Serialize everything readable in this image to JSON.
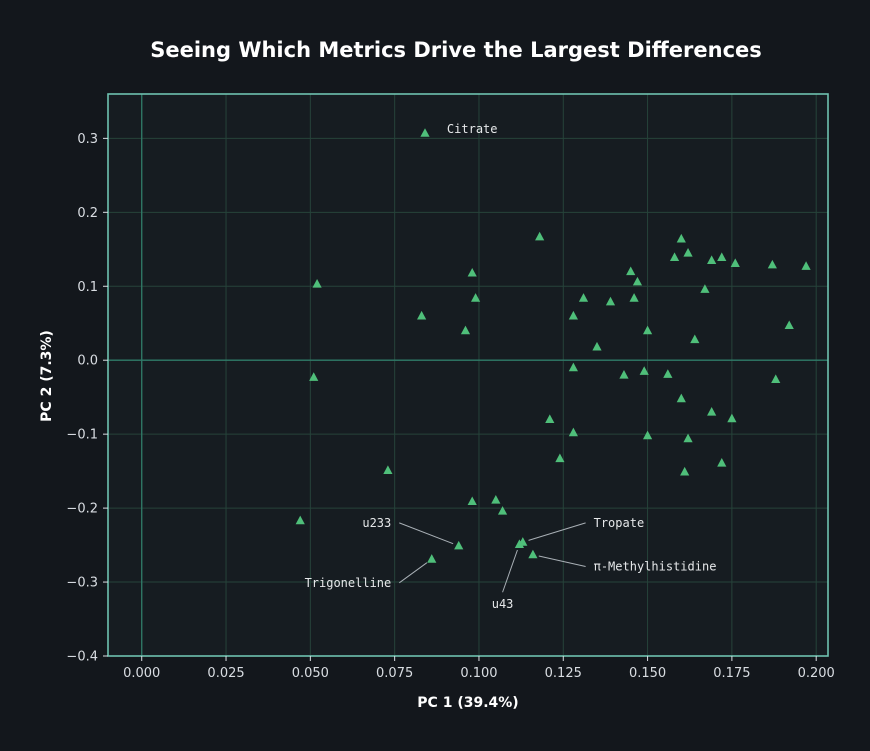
{
  "chart_data": {
    "type": "scatter",
    "title": "Seeing Which Metrics Drive the Largest Differences",
    "xlabel": "PC 1  (39.4%)",
    "ylabel": "PC 2  (7.3%)",
    "xlim": [
      -0.01,
      0.2035
    ],
    "ylim": [
      -0.4,
      0.36
    ],
    "xticks": [
      0.0,
      0.025,
      0.05,
      0.075,
      0.1,
      0.125,
      0.15,
      0.175,
      0.2
    ],
    "xtick_labels": [
      "0.000",
      "0.025",
      "0.050",
      "0.075",
      "0.100",
      "0.125",
      "0.150",
      "0.175",
      "0.200"
    ],
    "yticks": [
      0.3,
      0.2,
      0.1,
      0.0,
      -0.1,
      -0.2,
      -0.3,
      -0.4
    ],
    "ytick_labels": [
      "0.3",
      "0.2",
      "0.1",
      "0.0",
      "−0.1",
      "−0.2",
      "−0.3",
      "−0.4"
    ],
    "grid": true,
    "marker": "triangle",
    "colors": {
      "background": "#13171c",
      "plot_background": "#161c21",
      "frame": "#6fc2b0",
      "grid": "#26433a",
      "zero_line": "#2f7a68",
      "point": "#4fbf7a",
      "annotation_line": "#a9b0b6"
    },
    "points": [
      {
        "x": 0.084,
        "y": 0.307
      },
      {
        "x": 0.118,
        "y": 0.167
      },
      {
        "x": 0.052,
        "y": 0.103
      },
      {
        "x": 0.098,
        "y": 0.118
      },
      {
        "x": 0.099,
        "y": 0.084
      },
      {
        "x": 0.083,
        "y": 0.06
      },
      {
        "x": 0.096,
        "y": 0.04
      },
      {
        "x": 0.051,
        "y": -0.023
      },
      {
        "x": 0.128,
        "y": 0.06
      },
      {
        "x": 0.131,
        "y": 0.084
      },
      {
        "x": 0.139,
        "y": 0.079
      },
      {
        "x": 0.145,
        "y": 0.12
      },
      {
        "x": 0.147,
        "y": 0.106
      },
      {
        "x": 0.146,
        "y": 0.084
      },
      {
        "x": 0.15,
        "y": 0.04
      },
      {
        "x": 0.135,
        "y": 0.018
      },
      {
        "x": 0.128,
        "y": -0.01
      },
      {
        "x": 0.143,
        "y": -0.02
      },
      {
        "x": 0.149,
        "y": -0.015
      },
      {
        "x": 0.156,
        "y": -0.019
      },
      {
        "x": 0.16,
        "y": -0.052
      },
      {
        "x": 0.158,
        "y": 0.139
      },
      {
        "x": 0.16,
        "y": 0.164
      },
      {
        "x": 0.162,
        "y": 0.145
      },
      {
        "x": 0.169,
        "y": 0.135
      },
      {
        "x": 0.172,
        "y": 0.139
      },
      {
        "x": 0.176,
        "y": 0.131
      },
      {
        "x": 0.167,
        "y": 0.096
      },
      {
        "x": 0.187,
        "y": 0.129
      },
      {
        "x": 0.197,
        "y": 0.127
      },
      {
        "x": 0.164,
        "y": 0.028
      },
      {
        "x": 0.192,
        "y": 0.047
      },
      {
        "x": 0.188,
        "y": -0.026
      },
      {
        "x": 0.169,
        "y": -0.07
      },
      {
        "x": 0.175,
        "y": -0.079
      },
      {
        "x": 0.121,
        "y": -0.08
      },
      {
        "x": 0.128,
        "y": -0.098
      },
      {
        "x": 0.15,
        "y": -0.102
      },
      {
        "x": 0.162,
        "y": -0.106
      },
      {
        "x": 0.124,
        "y": -0.133
      },
      {
        "x": 0.161,
        "y": -0.151
      },
      {
        "x": 0.172,
        "y": -0.139
      },
      {
        "x": 0.073,
        "y": -0.149
      },
      {
        "x": 0.047,
        "y": -0.217
      },
      {
        "x": 0.098,
        "y": -0.191
      },
      {
        "x": 0.105,
        "y": -0.189
      },
      {
        "x": 0.107,
        "y": -0.204
      },
      {
        "x": 0.094,
        "y": -0.251
      },
      {
        "x": 0.086,
        "y": -0.269
      },
      {
        "x": 0.112,
        "y": -0.249
      },
      {
        "x": 0.113,
        "y": -0.246
      },
      {
        "x": 0.116,
        "y": -0.263
      }
    ],
    "annotations": [
      {
        "text": "Citrate",
        "point": {
          "x": 0.084,
          "y": 0.307
        },
        "label": {
          "x": 0.0905,
          "y": 0.313
        },
        "anchor": "start",
        "line": false
      },
      {
        "text": "u233",
        "point": {
          "x": 0.094,
          "y": -0.251
        },
        "label": {
          "x": 0.074,
          "y": -0.22
        },
        "anchor": "end",
        "line": true
      },
      {
        "text": "Trigonelline",
        "point": {
          "x": 0.086,
          "y": -0.269
        },
        "label": {
          "x": 0.074,
          "y": -0.301
        },
        "anchor": "end",
        "line": true
      },
      {
        "text": "Tropate",
        "point": {
          "x": 0.113,
          "y": -0.246
        },
        "label": {
          "x": 0.134,
          "y": -0.22
        },
        "anchor": "start",
        "line": true
      },
      {
        "text": "π-Methylhistidine",
        "point": {
          "x": 0.116,
          "y": -0.263
        },
        "label": {
          "x": 0.134,
          "y": -0.279
        },
        "anchor": "start",
        "line": true
      },
      {
        "text": "u43",
        "point": {
          "x": 0.112,
          "y": -0.249
        },
        "label": {
          "x": 0.107,
          "y": -0.33
        },
        "anchor": "middle",
        "line": true
      }
    ]
  }
}
